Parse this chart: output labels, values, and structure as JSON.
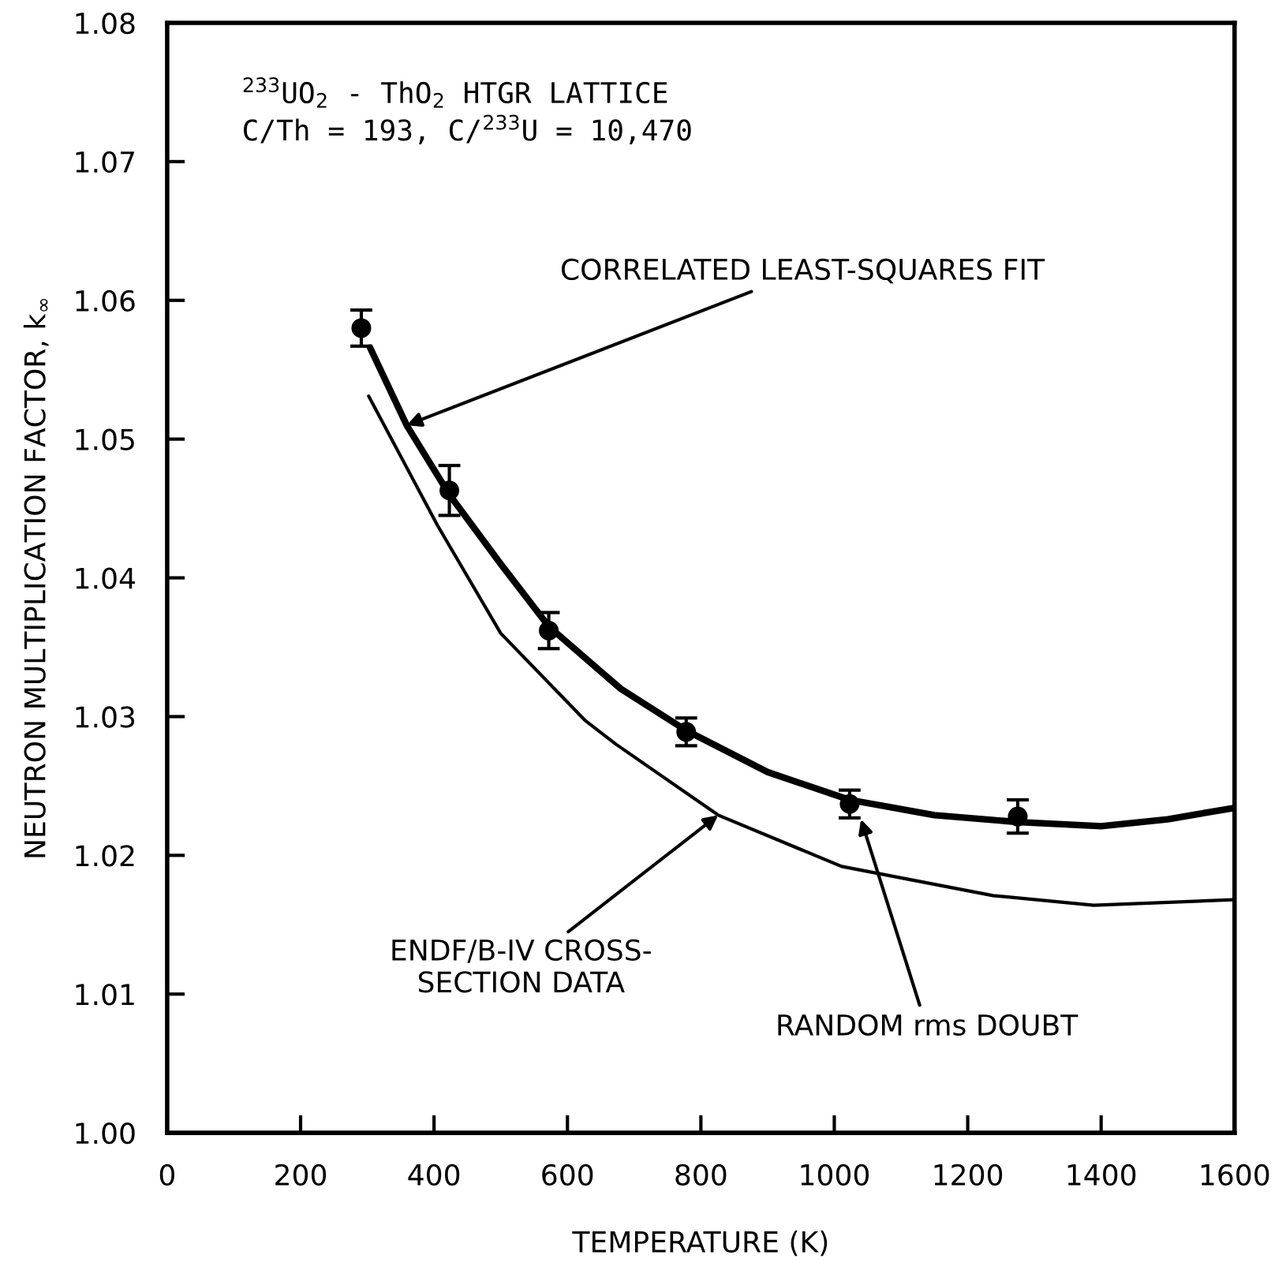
{
  "chart_data": {
    "type": "line",
    "xlabel": "TEMPERATURE (K)",
    "ylabel": "NEUTRON MULTIPLICATION FACTOR, k$_{∞}$",
    "xlim": [
      0,
      1600
    ],
    "xticks": [
      0,
      200,
      400,
      600,
      800,
      1000,
      1200,
      1400,
      1600
    ],
    "ylim": [
      1.0,
      1.08
    ],
    "yticks": [
      {
        "value": 1.0,
        "label": "1.00"
      },
      {
        "value": 1.01,
        "label": "1.01"
      },
      {
        "value": 1.02,
        "label": "1.02"
      },
      {
        "value": 1.03,
        "label": "1.03"
      },
      {
        "value": 1.04,
        "label": "1.04"
      },
      {
        "value": 1.05,
        "label": "1.05"
      },
      {
        "value": 1.06,
        "label": "1.06"
      },
      {
        "value": 1.07,
        "label": "1.07"
      },
      {
        "value": 1.08,
        "label": "1.08"
      }
    ],
    "grid": false,
    "legend": false,
    "series": [
      {
        "type": "scatter",
        "color": "#000000",
        "marker": "circle",
        "x": [
          291,
          423,
          572,
          778,
          1023,
          1275
        ],
        "values": [
          1.058,
          1.0463,
          1.0362,
          1.0289,
          1.0237,
          1.0228
        ],
        "errors": [
          0.0013,
          0.0018,
          0.0013,
          0.001,
          0.001,
          0.0012
        ]
      },
      {
        "color": "#000000",
        "line_style": "solid",
        "x": [
          304,
          359,
          423,
          500,
          572,
          680,
          778,
          900,
          1023,
          1150,
          1275,
          1400,
          1500,
          1597
        ],
        "values": [
          1.0566,
          1.051,
          1.046,
          1.041,
          1.0365,
          1.032,
          1.029,
          1.026,
          1.024,
          1.0229,
          1.0224,
          1.0221,
          1.0226,
          1.0234
        ]
      },
      {
        "color": "#000000",
        "line_style": "solid",
        "x": [
          302,
          405,
          500,
          627,
          673,
          826,
          1011,
          1238,
          1389,
          1597
        ],
        "values": [
          1.0531,
          1.0438,
          1.036,
          1.0297,
          1.028,
          1.0229,
          1.0192,
          1.0171,
          1.0164,
          1.0168
        ]
      }
    ],
    "annotations": [
      "$^{233}$UO$_{2}$ - ThO$_{2}$ HTGR LATTICE\nC/Th = 193, C/$^{233}$U = 10,470",
      {
        "text": "CORRELATED LEAST-SQUARES FIT",
        "x": 359,
        "y": 1.051
      },
      {
        "text": "ENDF/B-IV CROSS-\nSECTION DATA",
        "x": 826,
        "y": 1.0229
      },
      {
        "text": "RANDOM rms DOUBT",
        "x": 1040,
        "y": 1.0226
      }
    ]
  }
}
